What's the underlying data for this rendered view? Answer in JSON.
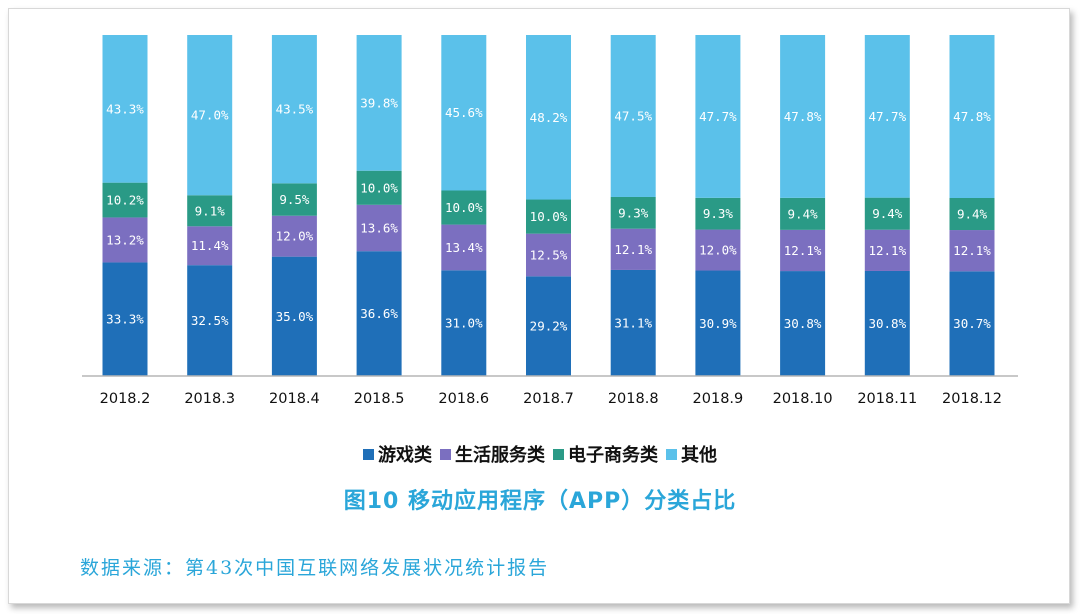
{
  "chart_data": {
    "type": "bar",
    "stacked": true,
    "categories": [
      "2018.2",
      "2018.3",
      "2018.4",
      "2018.5",
      "2018.6",
      "2018.7",
      "2018.8",
      "2018.9",
      "2018.10",
      "2018.11",
      "2018.12"
    ],
    "series": [
      {
        "name": "游戏类",
        "color": "#1f6fb8",
        "values": [
          33.3,
          32.5,
          35.0,
          36.6,
          31.0,
          29.2,
          31.1,
          30.9,
          30.8,
          30.8,
          30.7
        ]
      },
      {
        "name": "生活服务类",
        "color": "#7b6fc0",
        "values": [
          13.2,
          11.4,
          12.0,
          13.6,
          13.4,
          12.5,
          12.1,
          12.0,
          12.1,
          12.1,
          12.1
        ]
      },
      {
        "name": "电子商务类",
        "color": "#2a9a86",
        "values": [
          10.2,
          9.1,
          9.5,
          10.0,
          10.0,
          10.0,
          9.3,
          9.3,
          9.4,
          9.4,
          9.4
        ]
      },
      {
        "name": "其他",
        "color": "#5bc1ea",
        "values": [
          43.3,
          47.0,
          43.5,
          39.8,
          45.6,
          48.2,
          47.5,
          47.7,
          47.8,
          47.7,
          47.8
        ]
      }
    ],
    "value_format": "%",
    "ylim": [
      0,
      100
    ],
    "legend_position": "bottom",
    "grid": false
  },
  "caption": "图10  移动应用程序（APP）分类占比",
  "source_text": "数据来源：第43次中国互联网络发展状况统计报告"
}
